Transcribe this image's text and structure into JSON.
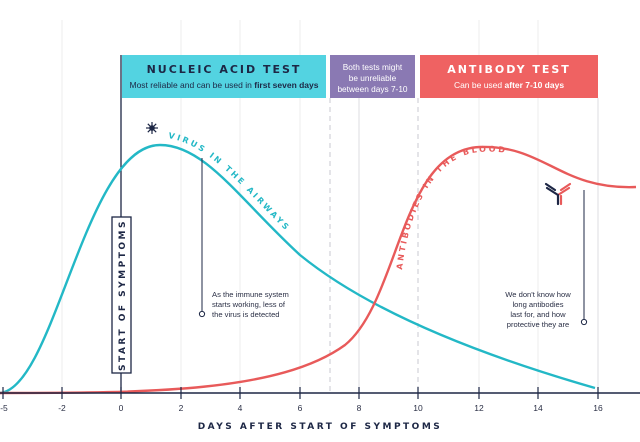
{
  "boxes": {
    "nucleic": {
      "title": "NUCLEIC ACID TEST",
      "sub_pre": "Most reliable and can be used in ",
      "sub_bold": "first seven days"
    },
    "between": {
      "line1": "Both tests might",
      "line2": "be unreliable",
      "line3": "between days 7-10"
    },
    "antibody": {
      "title": "ANTIBODY TEST",
      "sub_pre": "Can be used ",
      "sub_bold": "after 7-10 days"
    }
  },
  "start_label": "START OF SYMPTOMS",
  "curve_labels": {
    "virus": "VIRUS IN THE AIRWAYS",
    "antibodies": "ANTIBODIES IN THE BLOOD"
  },
  "notes": {
    "immune": [
      "As the immune system",
      "starts working, less of",
      "the virus is detected"
    ],
    "antibody": [
      "We don't know how",
      "long antibodies",
      "last for, and how",
      "protective they are"
    ]
  },
  "axis": {
    "title": "DAYS AFTER START OF SYMPTOMS",
    "ticks": [
      "-5",
      "-2",
      "0",
      "2",
      "4",
      "6",
      "8",
      "10",
      "12",
      "14",
      "16"
    ]
  },
  "colors": {
    "virus": "#23b8c6",
    "antibody": "#e85a5a",
    "nucleic_box": "#53d3e1",
    "between_box": "#8a79b3",
    "antibody_box": "#ef6262",
    "navy": "#1d2745"
  },
  "icons": {
    "virus": "virus-icon",
    "antibody": "antibody-icon"
  }
}
